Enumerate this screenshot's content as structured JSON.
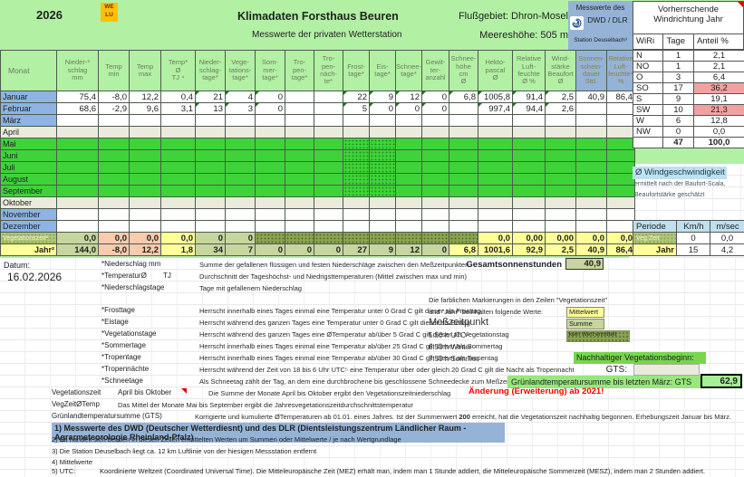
{
  "colors": {
    "page_green": "#b2f0a4",
    "bright_green": "#3ed339",
    "month_blue": "#8db4e2",
    "dwd_blue": "#95b3d7",
    "beige": "#ebebdd",
    "sum_green": "#c6d69e",
    "avg_yellow": "#ffff99",
    "temp_salmon": "#f8cbad",
    "na_olive": "#8aa352",
    "pink_highlight": "#f2a1a1",
    "cyan_header": "#bfe0ee",
    "red_accent": "#ff0000",
    "logo_orange": "#ffc000"
  },
  "header": {
    "year": "2026",
    "logo_line1": "WE",
    "logo_line2": "LU",
    "title": "Klimadaten Forsthaus Beuren",
    "subtitle": "Messwerte der privaten Wetterstation",
    "river": "Flußgebiet: Dhron-Mosel",
    "altitude": "Meereshöhe: 505 m",
    "date_label": "Datum:",
    "date_value": "16.02.2026"
  },
  "dwd_box": {
    "line1": "Messwerte des",
    "line2": "DWD / DLR",
    "station": "Station Deuselbach³"
  },
  "wind_direction": {
    "title_line1": "Vorherrschende",
    "title_line2": "Windrichtung Jahr",
    "col_headers": [
      "WiRi",
      "Tage",
      "Anteil %"
    ],
    "rows": [
      {
        "dir": "N",
        "days": "1",
        "pct": "2,1",
        "highlight": false
      },
      {
        "dir": "NO",
        "days": "1",
        "pct": "2,1",
        "highlight": false
      },
      {
        "dir": "O",
        "days": "3",
        "pct": "6,4",
        "highlight": false
      },
      {
        "dir": "SO",
        "days": "17",
        "pct": "36,2",
        "highlight": true
      },
      {
        "dir": "S",
        "days": "9",
        "pct": "19,1",
        "highlight": false
      },
      {
        "dir": "SW",
        "days": "10",
        "pct": "21,3",
        "highlight": true
      },
      {
        "dir": "W",
        "days": "6",
        "pct": "12,8",
        "highlight": false
      },
      {
        "dir": "NW",
        "days": "0",
        "pct": "0,0",
        "highlight": false
      }
    ],
    "total_days": "47",
    "total_pct": "100,0"
  },
  "wind_speed": {
    "title": "Ø Windgeschwindigkeit",
    "note1": "ermittelt nach der Baufort-Scala,",
    "note2": "Beaufortstärke geschätzt",
    "col_headers": [
      "Periode",
      "Km/h",
      "m/sec"
    ],
    "rows": [
      {
        "label": "Veg Zeit",
        "kmh": "0",
        "msec": "0,0",
        "label_style": "veghatch"
      },
      {
        "label": "Jahr",
        "kmh": "15",
        "msec": "4,2",
        "label_style": "yellow"
      }
    ]
  },
  "climate_table": {
    "month_header": "Monat",
    "columns": [
      {
        "lines": [
          "Nieder-*",
          "schlag",
          "mm"
        ]
      },
      {
        "lines": [
          "Temp",
          "min"
        ]
      },
      {
        "lines": [
          "Temp",
          "max"
        ]
      },
      {
        "lines": [
          "Temp*",
          "Ø",
          "TJ ⁴"
        ]
      },
      {
        "lines": [
          "Nieder-",
          "schlag-",
          "tage*"
        ]
      },
      {
        "lines": [
          "Vege-",
          "tations-",
          "tage*"
        ]
      },
      {
        "lines": [
          "Som-",
          "mer-",
          "tage*"
        ]
      },
      {
        "lines": [
          "Tro-",
          "pen-",
          "tage*"
        ]
      },
      {
        "lines": [
          "Tro-",
          "pen-",
          "näch-",
          "te*"
        ]
      },
      {
        "lines": [
          "Frost-",
          "tage*"
        ]
      },
      {
        "lines": [
          "Eis-",
          "tage*"
        ]
      },
      {
        "lines": [
          "Schnee-",
          "tage*"
        ]
      },
      {
        "lines": [
          "Gewit-",
          "ter-",
          "anzahl"
        ]
      },
      {
        "lines": [
          "Schnee-",
          "höhe",
          "cm",
          "Ø"
        ]
      },
      {
        "lines": [
          "Hekto-",
          "pascal",
          "Ø"
        ]
      },
      {
        "lines": [
          "Relative",
          "Luft-",
          "feuchte",
          "Ø  %"
        ]
      },
      {
        "lines": [
          "Wind-",
          "stärke",
          "Beaufort",
          "Ø"
        ]
      },
      {
        "lines": [
          "Sonnen-",
          "schein-",
          "dauer",
          "Std."
        ],
        "blue": true
      },
      {
        "lines": [
          "Relative",
          "Luft-",
          "feuchte⁴",
          "%"
        ],
        "blue": true
      }
    ],
    "rows": [
      {
        "label": "Januar",
        "label_style": "blue",
        "row_style": "white",
        "cells": [
          "75,4",
          "-8,0",
          "12,2",
          "0,4",
          "21",
          "4",
          "0",
          "",
          "",
          "22",
          "9",
          "12",
          "0",
          "6,8",
          "1005,8",
          "91,4",
          "2,5",
          "40,9",
          "86,4"
        ],
        "markers": [
          4,
          5,
          6,
          9,
          10,
          11,
          12,
          13,
          14,
          15,
          16
        ]
      },
      {
        "label": "Februar",
        "label_style": "blue",
        "row_style": "white",
        "cells": [
          "68,6",
          "-2,9",
          "9,6",
          "3,1",
          "13",
          "3",
          "0",
          "",
          "",
          "5",
          "0",
          "0",
          "0",
          "",
          "997,4",
          "94,4",
          "2,6",
          "",
          ""
        ],
        "markers": [
          4,
          5,
          6,
          9,
          10,
          11,
          12,
          14,
          15,
          16
        ]
      },
      {
        "label": "März",
        "label_style": "blue",
        "row_style": "white",
        "cells": [
          "",
          "",
          "",
          "",
          "",
          "",
          "",
          "",
          "",
          "",
          "",
          "",
          "",
          "",
          "",
          "",
          "",
          "",
          ""
        ]
      },
      {
        "label": "April",
        "label_style": "beige",
        "row_style": "beige",
        "cells": [
          "",
          "",
          "",
          "",
          "",
          "",
          "",
          "",
          "",
          "",
          "",
          "",
          "",
          "",
          "",
          "",
          "",
          "",
          ""
        ]
      },
      {
        "label": "Mai",
        "label_style": "green",
        "row_style": "green",
        "dotted": [
          9,
          10
        ],
        "cells": [
          "",
          "",
          "",
          "",
          "",
          "",
          "",
          "",
          "",
          "",
          "",
          "",
          "",
          "",
          "",
          "",
          "",
          "",
          ""
        ]
      },
      {
        "label": "Juni",
        "label_style": "green",
        "row_style": "green",
        "dotted": [
          9,
          10
        ],
        "cells": [
          "",
          "",
          "",
          "",
          "",
          "",
          "",
          "",
          "",
          "",
          "",
          "",
          "",
          "",
          "",
          "",
          "",
          "",
          ""
        ]
      },
      {
        "label": "Juli",
        "label_style": "green",
        "row_style": "green",
        "dotted": [
          9,
          10
        ],
        "cells": [
          "",
          "",
          "",
          "",
          "",
          "",
          "",
          "",
          "",
          "",
          "",
          "",
          "",
          "",
          "",
          "",
          "",
          "",
          ""
        ]
      },
      {
        "label": "August",
        "label_style": "green",
        "row_style": "green",
        "dotted": [
          9,
          10
        ],
        "cells": [
          "",
          "",
          "",
          "",
          "",
          "",
          "",
          "",
          "",
          "",
          "",
          "",
          "",
          "",
          "",
          "",
          "",
          "",
          ""
        ]
      },
      {
        "label": "September",
        "label_style": "green",
        "row_style": "green",
        "dotted": [
          9,
          10
        ],
        "cells": [
          "",
          "",
          "",
          "",
          "",
          "",
          "",
          "",
          "",
          "",
          "",
          "",
          "",
          "",
          "",
          "",
          "",
          "",
          ""
        ]
      },
      {
        "label": "Oktober",
        "label_style": "beige",
        "row_style": "beige",
        "cells": [
          "",
          "",
          "",
          "",
          "",
          "",
          "",
          "",
          "",
          "",
          "",
          "",
          "",
          "",
          "",
          "",
          "",
          "",
          ""
        ]
      },
      {
        "label": "November",
        "label_style": "blue",
        "row_style": "white",
        "cells": [
          "",
          "",
          "",
          "",
          "",
          "",
          "",
          "",
          "",
          "",
          "",
          "",
          "",
          "",
          "",
          "",
          "",
          "",
          ""
        ]
      },
      {
        "label": "Dezember",
        "label_style": "blue",
        "row_style": "white",
        "cells": [
          "",
          "",
          "",
          "",
          "",
          "",
          "",
          "",
          "",
          "",
          "",
          "",
          "",
          "",
          "",
          "",
          "",
          "",
          ""
        ]
      },
      {
        "label": "Vegetationszeit²",
        "label_style": "veghatch",
        "row_style": "white",
        "bold": true,
        "cells": [
          "0,0",
          "0,0",
          "0,0",
          "0,0",
          "0",
          "0",
          "",
          "",
          "",
          "",
          "",
          "",
          "",
          "",
          "0,0",
          "0,00",
          "0,00",
          "0,0",
          "0,0"
        ],
        "cell_styles": [
          "sum",
          "temp",
          "temp",
          "avg",
          "sum",
          "sum",
          "na",
          "na",
          "na",
          "na",
          "na",
          "na",
          "na",
          "na",
          "avg",
          "avg",
          "avg",
          "avg",
          "avg"
        ]
      },
      {
        "label": "Jahr²",
        "label_style": "yellow",
        "row_style": "white",
        "bold": true,
        "cells": [
          "144,0",
          "-8,0",
          "12,2",
          "1,8",
          "34",
          "7",
          "0",
          "0",
          "0",
          "27",
          "9",
          "12",
          "0",
          "6,8",
          "1001,6",
          "92,9",
          "2,5",
          "40,9",
          "86,4"
        ],
        "cell_styles": [
          "sum",
          "temp",
          "temp",
          "avg",
          "sum",
          "sum",
          "sum",
          "sum",
          "sum",
          "sum",
          "sum",
          "sum",
          "sum",
          "avg",
          "avg",
          "avg",
          "avg",
          "avg",
          "avg"
        ]
      }
    ]
  },
  "sunshine": {
    "label": "Gesamtsonnenstunden",
    "value": "40,9"
  },
  "legend": {
    "rows": [
      {
        "label": "*Niederschlag mm",
        "text": "Summe der gefallenen flüssigen und festen Niederschläge zwischen den Meßzeitpunkten"
      },
      {
        "label": "*TemperaturØ",
        "mid": "TJ",
        "text": "Durchschnitt der Tageshöchst- und Niedrigsttemperaturen (Mittel zwischen max und min)"
      },
      {
        "label": "*Niederschlagstage",
        "text": "Tage mit gefallenem Niederschlag"
      },
      {
        "label": "*Frosttage",
        "text": "Herrscht innerhalb eines Tages einmal eine Temperatur unter 0 Grad C gilt dieser als Frosttag"
      },
      {
        "label": "*Eistage",
        "text": "Herrscht während des ganzen Tages eine Temperatur unter 0 Grad C gilt dieser als Eistag"
      },
      {
        "label": "*Vegetationstage",
        "text": "Herrscht während des ganzen Tages eine ØTemperatur ab/über 5 Grad C gilt dieser als Vegetationstag"
      },
      {
        "label": "*Sommertage",
        "text": "Herrscht innerhalb eines Tages einmal eine Temperatur ab/über 25 Grad C gilt dieser als Sommertag"
      },
      {
        "label": "*Tropentage",
        "text": "Herrscht innerhalb eines Tages einmal eine Temperatur ab/über 30 Grad C gilt dieser als Tropentag"
      },
      {
        "label": "*Tropennächte",
        "text": "Herrscht während der Zeit von 18 bis 6 Uhr UTC⁵ eine Temperatur über oder gleich 20 Grad C gilt die Nacht als Tropennacht"
      },
      {
        "label": "*Schneetage",
        "text": "Als Schneetag zählt der Tag, an dem eine durchbrochene bis geschlossene Schneedecke zum Meßzeitpunkt vorhanden ist."
      },
      {
        "label": "Vegetationszeit",
        "mid": "April bis Oktober",
        "text": "Die Summe der Monate April bis Oktober ergibt den Vegetationszeitniederschlag"
      },
      {
        "label": "VegZeitØTemp",
        "text": "Das Mittel der Monate Mai bis September ergibt die Jahresvegetationszeitdurchschnittstemperatur"
      },
      {
        "label": "Grünlandtemperatursumme (GTS)",
        "text": "Korrigierte und kumulierte ØTemperaturen ab 01.01. eines Jahres. Ist der Summenwert ",
        "text_bold": "200",
        "text2": " erreicht, hat die Vegetationszeit nachhaltig begonnen. Erhebungszeit Januar bis März."
      }
    ],
    "color_key": {
      "line1": "Die farblichen Markierungen in den Zeilen \"Vegetationszeit\"",
      "line2": "und \"Jahr\" beinhalten folgende Werte:",
      "avg": "Mittelwert",
      "sum": "Summe",
      "none": "kein Wert ermittelt"
    },
    "measure_times": {
      "title": "Meßzeitpunkt",
      "utc": "5:50 h UTC⁵",
      "winter": "6:50 h Winter",
      "summer": "7:50 h Sommer"
    }
  },
  "gts": {
    "sustainable": "Nachhaltiger Vegetationsbeginn:",
    "gts_label": "GTS:",
    "gruenland_label": "Grünlandtemperatursumme bis letzten März:  GTS",
    "gruenland_value": "62,9",
    "change_note": "Änderung (Erweiterung) ab 2021!"
  },
  "footnotes": [
    {
      "text": "1) Messwerte des DWD (Deutscher Wetterdiesnt) und des DLR (Dientsleistungszentrum Ländlicher Raum - Agrarmeteorologie Rheinland-Pfalz)",
      "style": "blue"
    },
    {
      "text": "2) Es handelt sich bei den in diesen Zeilen ermittelten Werten um Summen oder Mittelwerte / je nach Wertgrundlage"
    },
    {
      "text": "3) Die Station Deuselbach liegt ca. 12 km Luftlinie von der hiesigen Messstation entfernt"
    },
    {
      "text": "4) Mittelwerte"
    },
    {
      "label": "5) UTC:",
      "text": "Koordinierte Weltzeit (Coordinated Universal Time). Die Mitteleuropäische Zeit (MEZ) erhält man, indem man 1 Stunde addiert, die Mitteleuropäische Sommerzeit (MESZ), indem man 2 Stunden addiert."
    }
  ]
}
